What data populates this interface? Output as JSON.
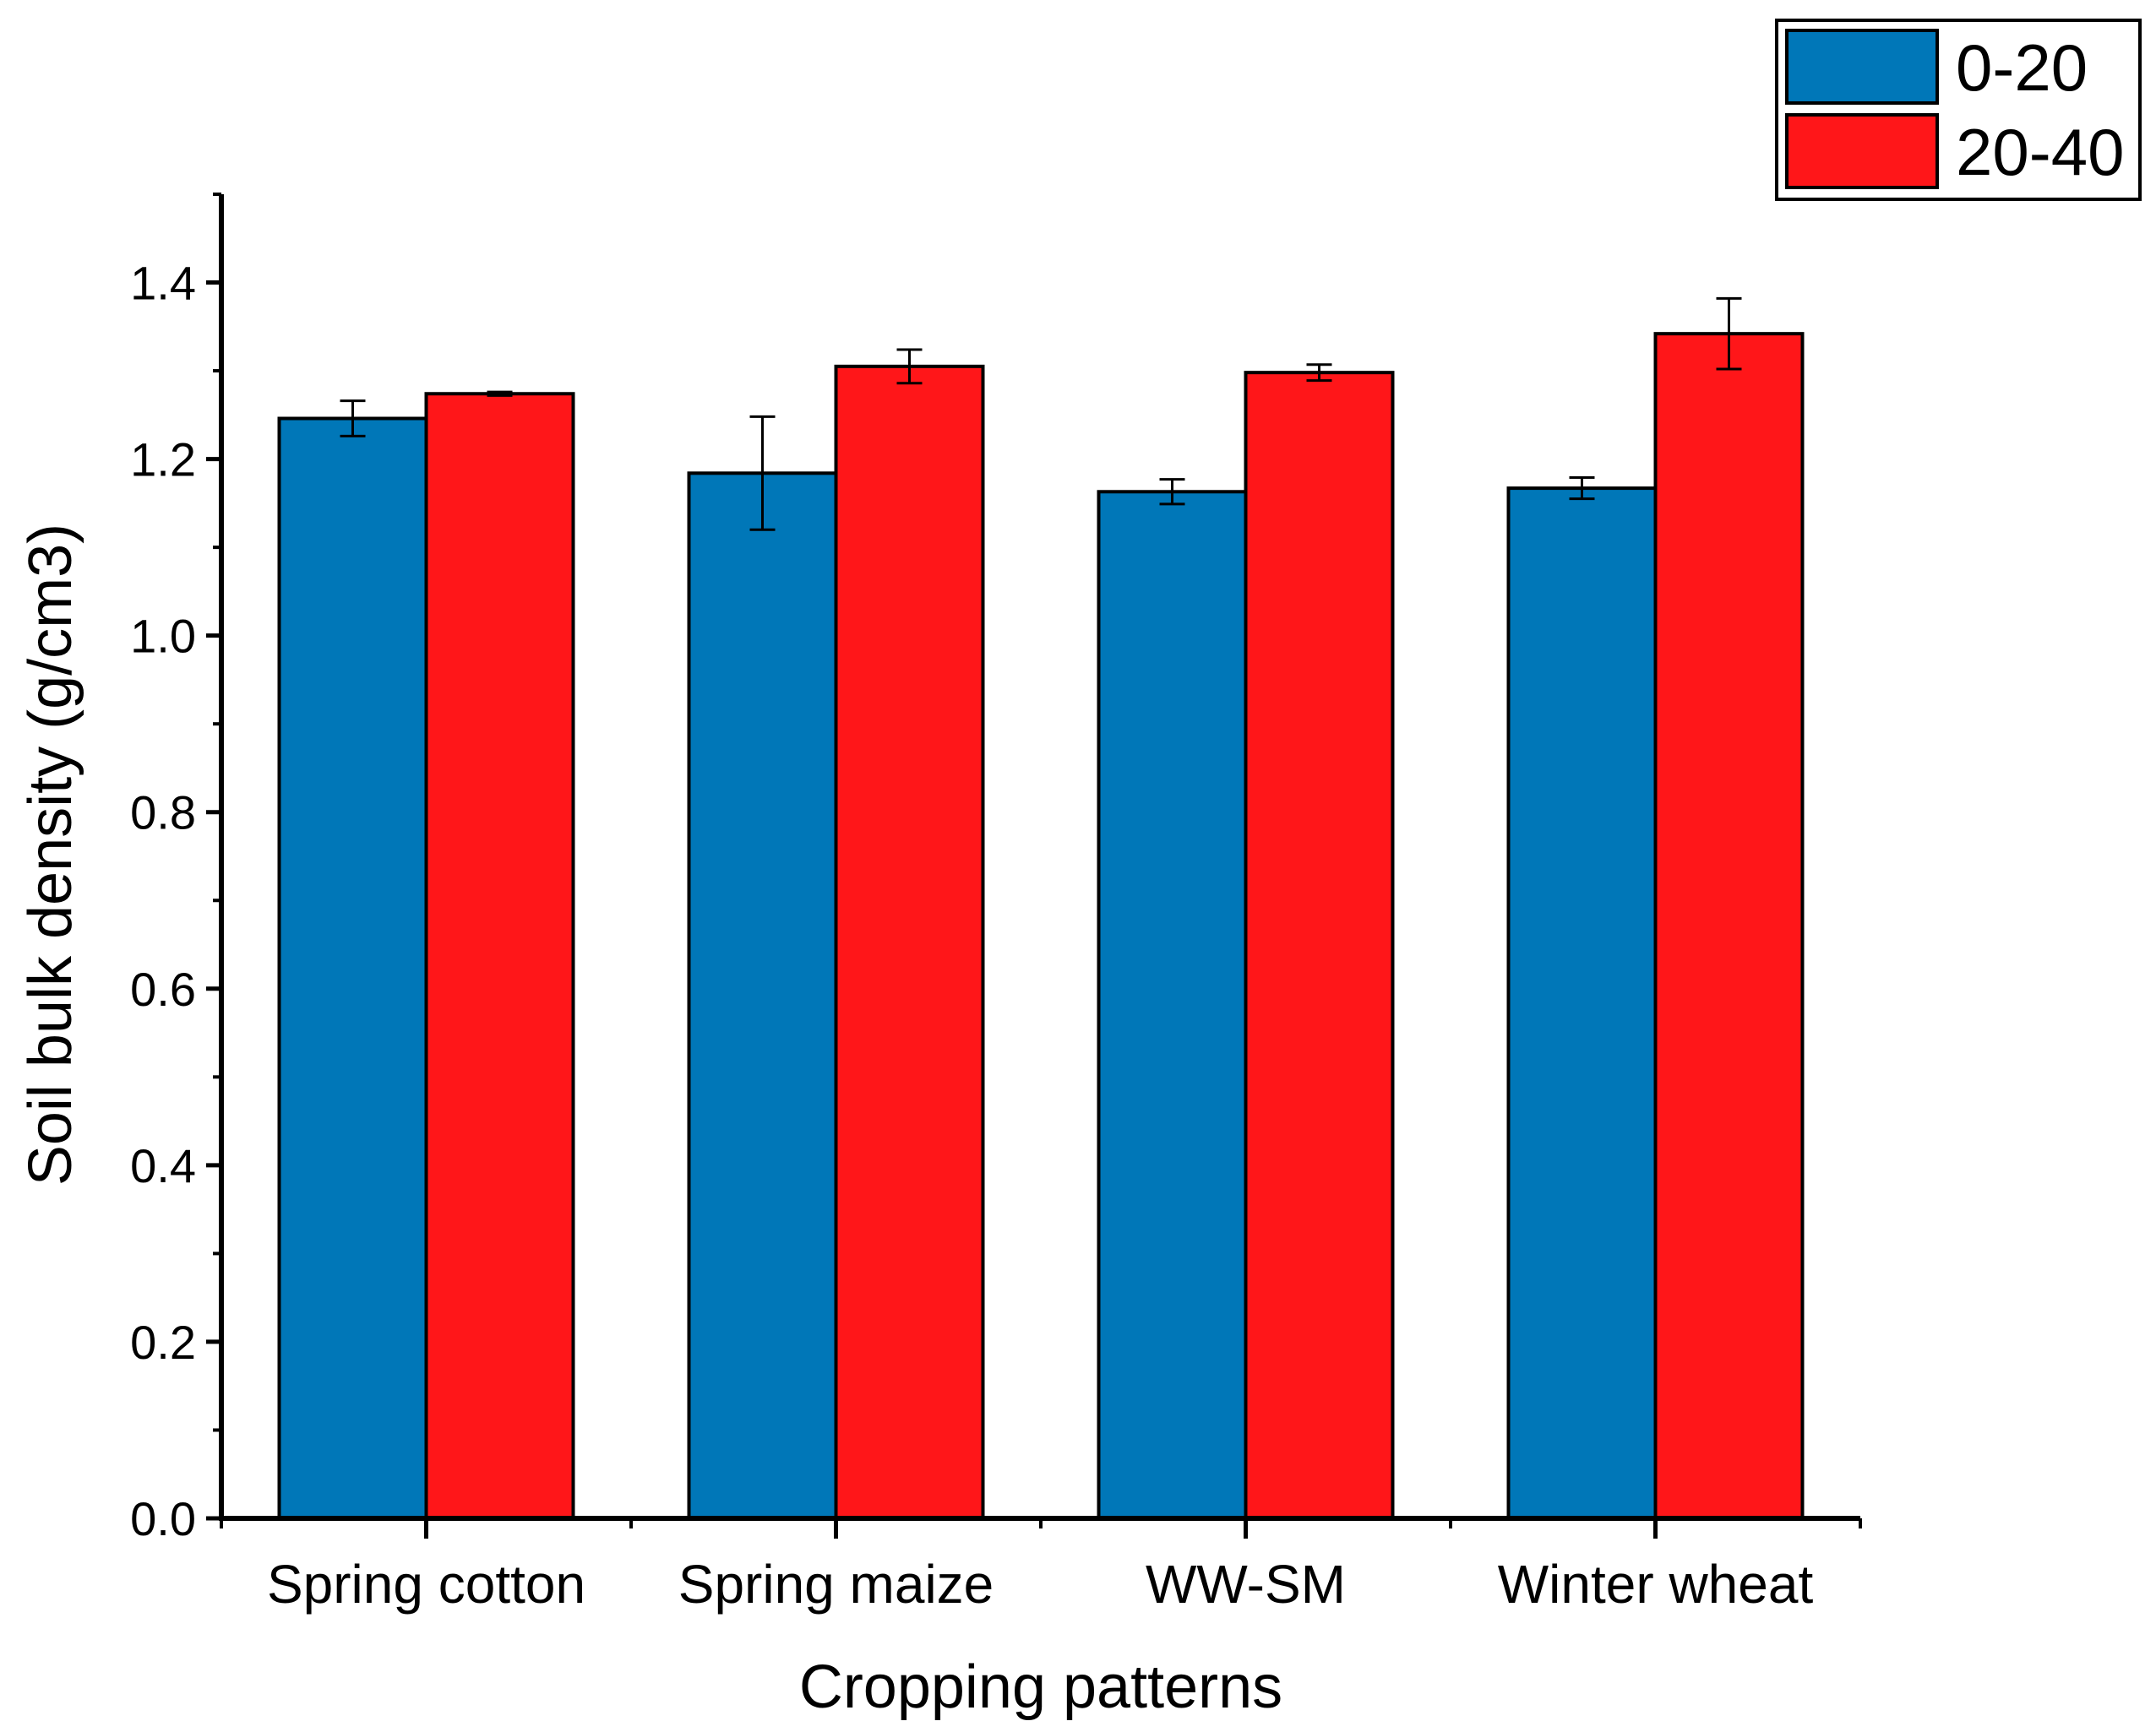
{
  "chart_data": {
    "type": "bar",
    "title": "",
    "xlabel": "Cropping patterns",
    "ylabel": "Soil bulk density (g/cm3)",
    "ylim": [
      0,
      1.5
    ],
    "yticks": [
      "0.0",
      "0.2",
      "0.4",
      "0.6",
      "0.8",
      "1.0",
      "1.2",
      "1.4"
    ],
    "grid": false,
    "legend_position": "top-right",
    "categories": [
      "Spring cotton",
      "Spring maize",
      "WW-SM",
      "Winter wheat"
    ],
    "series": [
      {
        "name": "0-20",
        "color": "#0077B8",
        "values": [
          1.246,
          1.184,
          1.163,
          1.167
        ],
        "errors": [
          0.02,
          0.064,
          0.014,
          0.012
        ]
      },
      {
        "name": "20-40",
        "color": "#FF1619",
        "values": [
          1.274,
          1.305,
          1.298,
          1.342
        ],
        "errors": [
          0.002,
          0.019,
          0.009,
          0.04
        ]
      }
    ]
  }
}
